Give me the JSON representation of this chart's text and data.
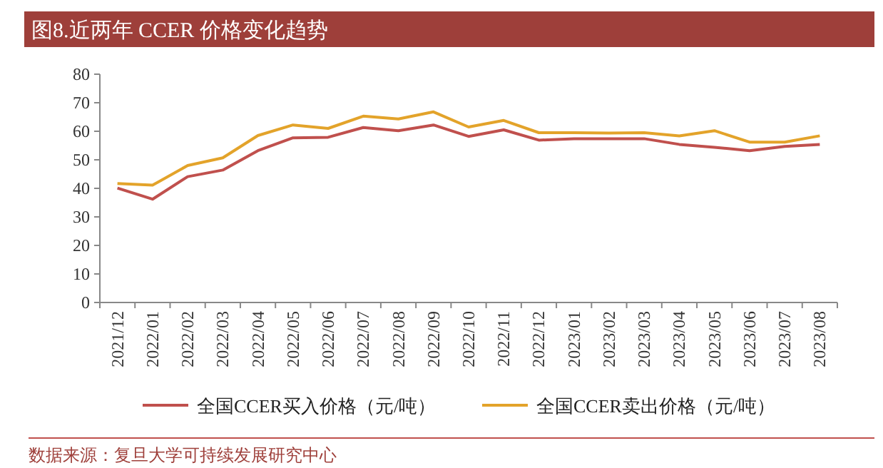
{
  "chart_data": {
    "type": "line",
    "title": "图8.近两年 CCER 价格变化趋势",
    "categories": [
      "2021/12",
      "2022/01",
      "2022/02",
      "2022/03",
      "2022/04",
      "2022/05",
      "2022/06",
      "2022/07",
      "2022/08",
      "2022/09",
      "2022/10",
      "2022/11",
      "2022/12",
      "2023/01",
      "2023/02",
      "2023/03",
      "2023/04",
      "2023/05",
      "2023/06",
      "2023/07",
      "2023/08"
    ],
    "series": [
      {
        "name": "全国CCER买入价格（元/吨）",
        "color": "#c0504d",
        "values": [
          40.1,
          36.2,
          44.1,
          46.4,
          53.2,
          57.7,
          57.9,
          61.3,
          60.2,
          62.2,
          58.2,
          60.5,
          56.9,
          57.4,
          57.4,
          57.4,
          55.4,
          54.4,
          53.2,
          54.7,
          55.4
        ]
      },
      {
        "name": "全国CCER卖出价格（元/吨）",
        "color": "#e3a32a",
        "values": [
          41.7,
          41.1,
          48.0,
          50.7,
          58.5,
          62.2,
          61.0,
          65.3,
          64.3,
          66.8,
          61.5,
          63.8,
          59.5,
          59.5,
          59.4,
          59.5,
          58.4,
          60.2,
          56.2,
          56.2,
          58.4
        ]
      }
    ],
    "ylim": [
      0,
      80
    ],
    "yticks": [
      0,
      10,
      20,
      30,
      40,
      50,
      60,
      70,
      80
    ],
    "grid": false,
    "legend": "bottom",
    "marker": "none",
    "line_style": "solid",
    "annotations": [
      "数据来源：复旦大学可持续发展研究中心"
    ]
  }
}
